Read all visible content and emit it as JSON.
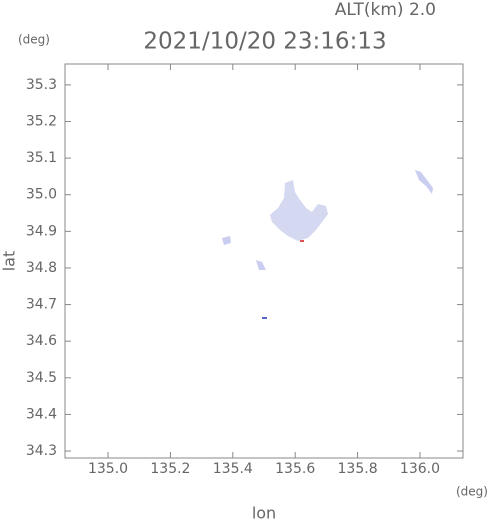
{
  "chart_data": {
    "type": "map",
    "title": "2021/10/20 23:16:13",
    "subtitle": "ALT(km) 2.0",
    "y_unit": "(deg)",
    "x_unit": "(deg)",
    "x_label": "lon",
    "y_label": "lat",
    "xlim": [
      134.862,
      136.138
    ],
    "ylim": [
      34.281,
      35.357
    ],
    "xticks": [
      {
        "value": 135.0,
        "label": "135.0"
      },
      135.2,
      135.4,
      135.6,
      135.8,
      {
        "value": 136.0,
        "label": "136.0"
      }
    ],
    "yticks": [
      34.3,
      34.4,
      34.5,
      34.6,
      34.7,
      34.8,
      34.9,
      {
        "value": 35.0,
        "label": "35.0"
      },
      35.1,
      35.2,
      35.3
    ]
  }
}
